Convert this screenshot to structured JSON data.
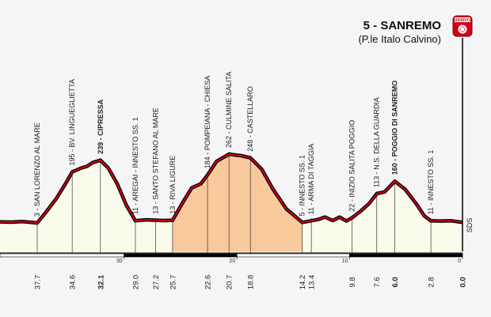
{
  "chart_data": {
    "type": "area",
    "title": "5 - SANREMO",
    "subtitle": "(P.le Italo Calvino)",
    "finish_badge": "ARRIVO",
    "side_label": "SDS",
    "x_axis_reversed": true,
    "x_range_km_to_go": [
      41.0,
      0.0
    ],
    "scale_ticks": [
      "30",
      "20",
      "10",
      "0"
    ],
    "colors": {
      "fill_plain": "#fbfbec",
      "fill_climb": "#f8c99b",
      "profile_line": "#d0021b",
      "finish_badge": "#d0021b"
    },
    "profile": [
      {
        "km": 41.0,
        "alt": 7
      },
      {
        "km": 40.0,
        "alt": 6
      },
      {
        "km": 39.0,
        "alt": 8
      },
      {
        "km": 37.7,
        "alt": 3
      },
      {
        "km": 36.9,
        "alt": 45
      },
      {
        "km": 36.0,
        "alt": 95
      },
      {
        "km": 35.2,
        "alt": 150
      },
      {
        "km": 34.6,
        "alt": 195
      },
      {
        "km": 33.8,
        "alt": 210
      },
      {
        "km": 33.3,
        "alt": 216
      },
      {
        "km": 32.8,
        "alt": 230
      },
      {
        "km": 32.1,
        "alt": 239
      },
      {
        "km": 31.4,
        "alt": 210
      },
      {
        "km": 30.6,
        "alt": 150
      },
      {
        "km": 29.8,
        "alt": 70
      },
      {
        "km": 29.0,
        "alt": 11
      },
      {
        "km": 28.0,
        "alt": 15
      },
      {
        "km": 27.2,
        "alt": 13
      },
      {
        "km": 26.5,
        "alt": 12
      },
      {
        "km": 25.7,
        "alt": 13
      },
      {
        "km": 24.8,
        "alt": 80
      },
      {
        "km": 24.0,
        "alt": 135
      },
      {
        "km": 23.2,
        "alt": 150
      },
      {
        "km": 22.6,
        "alt": 184
      },
      {
        "km": 21.8,
        "alt": 235
      },
      {
        "km": 20.7,
        "alt": 262
      },
      {
        "km": 19.6,
        "alt": 256
      },
      {
        "km": 18.8,
        "alt": 248
      },
      {
        "km": 17.8,
        "alt": 205
      },
      {
        "km": 16.8,
        "alt": 130
      },
      {
        "km": 15.6,
        "alt": 55
      },
      {
        "km": 14.2,
        "alt": 5
      },
      {
        "km": 13.4,
        "alt": 11
      },
      {
        "km": 12.8,
        "alt": 16
      },
      {
        "km": 12.2,
        "alt": 25
      },
      {
        "km": 11.5,
        "alt": 12
      },
      {
        "km": 10.9,
        "alt": 25
      },
      {
        "km": 10.3,
        "alt": 10
      },
      {
        "km": 9.8,
        "alt": 22
      },
      {
        "km": 9.1,
        "alt": 45
      },
      {
        "km": 8.3,
        "alt": 75
      },
      {
        "km": 7.6,
        "alt": 113
      },
      {
        "km": 6.9,
        "alt": 120
      },
      {
        "km": 6.0,
        "alt": 160
      },
      {
        "km": 5.1,
        "alt": 130
      },
      {
        "km": 4.1,
        "alt": 75
      },
      {
        "km": 3.4,
        "alt": 30
      },
      {
        "km": 2.8,
        "alt": 11
      },
      {
        "km": 2.0,
        "alt": 10
      },
      {
        "km": 1.0,
        "alt": 11
      },
      {
        "km": 0.0,
        "alt": 5
      }
    ],
    "climb_sections": [
      [
        25.7,
        14.2
      ]
    ],
    "locations": [
      {
        "alt": "3",
        "name": "SAN LORENZO AL MARE",
        "km": "37.7",
        "bold": false
      },
      {
        "alt": "195",
        "name": "BV. LINGUEGLIETTA",
        "km": "34.6",
        "bold": false
      },
      {
        "alt": "239",
        "name": "CIPRESSA",
        "km": "32.1",
        "bold": true
      },
      {
        "alt": "11",
        "name": "AREGAI - INNESTO SS. 1",
        "km": "29.0",
        "bold": false
      },
      {
        "alt": "13",
        "name": "SANTO STEFANO AL MARE",
        "km": "27.2",
        "bold": false
      },
      {
        "alt": "13",
        "name": "RIVA LIGURE",
        "km": "25.7",
        "bold": false
      },
      {
        "alt": "184",
        "name": "POMPEIANA - CHIESA",
        "km": "22.6",
        "bold": false
      },
      {
        "alt": "262",
        "name": "CULMINE SALITA",
        "km": "20.7",
        "bold": false
      },
      {
        "alt": "248",
        "name": "CASTELLARO",
        "km": "18.8",
        "bold": false
      },
      {
        "alt": "5",
        "name": "INNESTO SS. 1",
        "km": "14.2",
        "bold": false
      },
      {
        "alt": "11",
        "name": "ARMA DI TAGGIA",
        "km": "13.4",
        "bold": false
      },
      {
        "alt": "22",
        "name": "INIZIO SALITA POGGIO",
        "km": "9.8",
        "bold": false
      },
      {
        "alt": "113",
        "name": "N.S. DELLA GUARDIA",
        "km": "7.6",
        "bold": false
      },
      {
        "alt": "160",
        "name": "POGGIO DI SANREMO",
        "km": "6.0",
        "bold": true
      },
      {
        "alt": "11",
        "name": "INNESTO SS. 1",
        "km": "2.8",
        "bold": false
      },
      {
        "alt": "",
        "name": "",
        "km": "0.0",
        "bold": true
      }
    ]
  }
}
